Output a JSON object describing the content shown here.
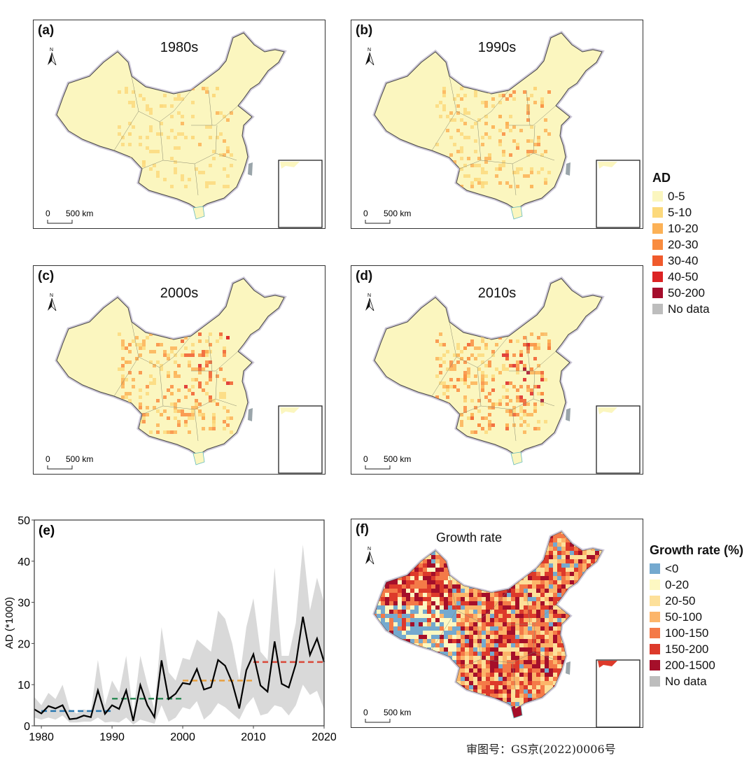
{
  "panels": [
    {
      "id": "a",
      "label": "(a)",
      "title": "1980s",
      "intensity": 0.25
    },
    {
      "id": "b",
      "label": "(b)",
      "title": "1990s",
      "intensity": 0.45
    },
    {
      "id": "c",
      "label": "(c)",
      "title": "2000s",
      "intensity": 0.7
    },
    {
      "id": "d",
      "label": "(d)",
      "title": "2010s",
      "intensity": 0.9
    },
    {
      "id": "f",
      "label": "(f)",
      "title": "Growth rate",
      "intensity": 1
    }
  ],
  "scale_bar": {
    "zero": "0",
    "label": "500 km"
  },
  "north_label": "N",
  "ad_legend": {
    "title": "AD",
    "items": [
      {
        "label": "0-5",
        "color": "#fbf6bf"
      },
      {
        "label": "5-10",
        "color": "#fcd97c"
      },
      {
        "label": "10-20",
        "color": "#fcb156"
      },
      {
        "label": "20-30",
        "color": "#f98c3f"
      },
      {
        "label": "30-40",
        "color": "#f05a2c"
      },
      {
        "label": "40-50",
        "color": "#dc2324"
      },
      {
        "label": "50-200",
        "color": "#a50d2c"
      },
      {
        "label": "No data",
        "color": "#bdbdbd"
      }
    ]
  },
  "growth_legend": {
    "title": "Growth rate (%)",
    "items": [
      {
        "label": "<0",
        "color": "#74a9cf"
      },
      {
        "label": "0-20",
        "color": "#fdf8c2"
      },
      {
        "label": "20-50",
        "color": "#fde09a"
      },
      {
        "label": "50-100",
        "color": "#fcb56a"
      },
      {
        "label": "100-150",
        "color": "#f47a48"
      },
      {
        "label": "150-200",
        "color": "#dd3a2b"
      },
      {
        "label": "200-1500",
        "color": "#a50f2a"
      },
      {
        "label": "No data",
        "color": "#bdbdbd"
      }
    ]
  },
  "chart_data": {
    "type": "line",
    "label": "(e)",
    "title": "",
    "xlabel": "",
    "ylabel": "AD (*1000)",
    "xlim": [
      1979,
      2020
    ],
    "ylim": [
      0,
      50
    ],
    "xticks": [
      1980,
      1990,
      2000,
      2010,
      2020
    ],
    "yticks": [
      0,
      10,
      20,
      30,
      40,
      50
    ],
    "x": [
      1979,
      1980,
      1981,
      1982,
      1983,
      1984,
      1985,
      1986,
      1987,
      1988,
      1989,
      1990,
      1991,
      1992,
      1993,
      1994,
      1995,
      1996,
      1997,
      1998,
      1999,
      2000,
      2001,
      2002,
      2003,
      2004,
      2005,
      2006,
      2007,
      2008,
      2009,
      2010,
      2011,
      2012,
      2013,
      2014,
      2015,
      2016,
      2017,
      2018,
      2019,
      2020
    ],
    "series": [
      {
        "name": "mean",
        "color": "#000000",
        "values": [
          4.0,
          3.0,
          4.8,
          4.2,
          5.0,
          1.6,
          1.8,
          2.5,
          2.1,
          8.6,
          2.9,
          5.0,
          4.1,
          8.6,
          1.2,
          9.9,
          5.0,
          2.1,
          15.9,
          6.5,
          7.8,
          10.4,
          10.1,
          13.8,
          8.8,
          9.4,
          16.0,
          14.6,
          10.5,
          4.2,
          13.5,
          17.4,
          9.8,
          8.3,
          20.5,
          10.2,
          9.3,
          15.0,
          26.5,
          17.2,
          21.2,
          15.5
        ]
      },
      {
        "name": "upper",
        "values": [
          7,
          5,
          8,
          6.5,
          10,
          4,
          3,
          4,
          3.5,
          16,
          5,
          11,
          8,
          17,
          3,
          17,
          10,
          4,
          24,
          13,
          11,
          16.5,
          16,
          21,
          19.5,
          18,
          28,
          26,
          20,
          11,
          24,
          31,
          18,
          16,
          38.5,
          17,
          17,
          25,
          44,
          28,
          36,
          30
        ]
      },
      {
        "name": "lower",
        "values": [
          2,
          1.5,
          2,
          1.5,
          2.5,
          0.8,
          0.8,
          1,
          1,
          2,
          0.8,
          1,
          0.8,
          2,
          0.3,
          1.5,
          1,
          0.5,
          5,
          1,
          2,
          4.5,
          4,
          6,
          1.5,
          3,
          5.5,
          4.5,
          3,
          1.5,
          5,
          7,
          2.5,
          3,
          5,
          4.5,
          2.5,
          5,
          10,
          7.5,
          8.5,
          4
        ]
      }
    ],
    "band_color": "#d9d9d9",
    "decadal_means": [
      {
        "from": 1980,
        "to": 1990,
        "value": 3.6,
        "color": "#2a78b0"
      },
      {
        "from": 1990,
        "to": 2000,
        "value": 6.6,
        "color": "#2e8b57"
      },
      {
        "from": 2000,
        "to": 2010,
        "value": 11.0,
        "color": "#e8a040"
      },
      {
        "from": 2010,
        "to": 2020,
        "value": 15.5,
        "color": "#d9493a"
      }
    ],
    "grid": false
  },
  "approval_note": "审图号：GS京(2022)0006号"
}
